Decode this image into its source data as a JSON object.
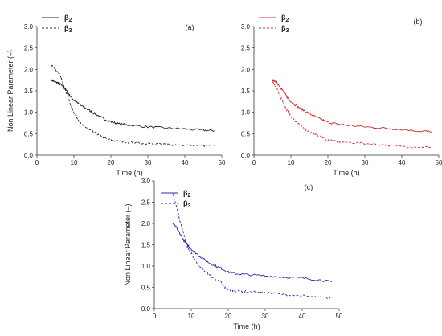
{
  "chart_data": [
    {
      "type": "line",
      "panel_label": "(a)",
      "xlabel": "Time (h)",
      "ylabel": "Non Linear Parameter (–)",
      "xlim": [
        0,
        50
      ],
      "ylim": [
        0,
        3.0
      ],
      "xticks": [
        0,
        10,
        20,
        30,
        40,
        50
      ],
      "yticks": [
        0.0,
        0.5,
        1.0,
        1.5,
        2.0,
        2.5,
        3.0
      ],
      "legend_position": "top-left",
      "color": "#222222",
      "series": [
        {
          "name": "β2",
          "style": "solid",
          "x": [
            4,
            5,
            6,
            7,
            8,
            9,
            10,
            12,
            14,
            16,
            18,
            20,
            22,
            25,
            30,
            35,
            40,
            45,
            48
          ],
          "y": [
            1.75,
            1.7,
            1.68,
            1.6,
            1.5,
            1.38,
            1.28,
            1.15,
            1.05,
            0.95,
            0.85,
            0.78,
            0.73,
            0.7,
            0.66,
            0.63,
            0.61,
            0.58,
            0.57
          ]
        },
        {
          "name": "β3",
          "style": "dashed",
          "x": [
            4,
            5,
            6,
            7,
            8,
            9,
            10,
            11,
            12,
            14,
            16,
            18,
            20,
            22,
            25,
            30,
            35,
            40,
            45,
            48
          ],
          "y": [
            2.1,
            2.0,
            1.9,
            1.7,
            1.45,
            1.2,
            1.0,
            0.85,
            0.72,
            0.6,
            0.5,
            0.4,
            0.35,
            0.32,
            0.3,
            0.27,
            0.25,
            0.23,
            0.22,
            0.22
          ]
        }
      ]
    },
    {
      "type": "line",
      "panel_label": "(b)",
      "xlabel": "Time (h)",
      "ylabel": "",
      "xlim": [
        0,
        50
      ],
      "ylim": [
        0,
        3.0
      ],
      "xticks": [
        0,
        10,
        20,
        30,
        40,
        50
      ],
      "yticks": [
        0.0,
        0.5,
        1.0,
        1.5,
        2.0,
        2.5,
        3.0
      ],
      "legend_position": "top-left",
      "color": "#cc2b2b",
      "series": [
        {
          "name": "β2",
          "style": "solid",
          "x": [
            5,
            6,
            7,
            8,
            9,
            10,
            12,
            14,
            16,
            18,
            20,
            22,
            25,
            30,
            35,
            40,
            45,
            48
          ],
          "y": [
            1.75,
            1.72,
            1.6,
            1.48,
            1.35,
            1.25,
            1.12,
            1.02,
            0.92,
            0.84,
            0.77,
            0.73,
            0.7,
            0.66,
            0.63,
            0.6,
            0.56,
            0.55
          ]
        },
        {
          "name": "β3",
          "style": "dashed",
          "x": [
            5,
            6,
            7,
            8,
            9,
            10,
            11,
            12,
            14,
            16,
            18,
            20,
            22,
            25,
            30,
            35,
            40,
            45,
            48
          ],
          "y": [
            1.7,
            1.6,
            1.4,
            1.2,
            1.05,
            0.92,
            0.82,
            0.72,
            0.6,
            0.5,
            0.42,
            0.36,
            0.32,
            0.3,
            0.27,
            0.24,
            0.2,
            0.19,
            0.19
          ]
        }
      ]
    },
    {
      "type": "line",
      "panel_label": "(c)",
      "xlabel": "Time (h)",
      "ylabel": "Non Linear Parameter (–)",
      "xlim": [
        0,
        50
      ],
      "ylim": [
        0,
        3.0
      ],
      "xticks": [
        0,
        10,
        20,
        30,
        40,
        50
      ],
      "yticks": [
        0.0,
        0.5,
        1.0,
        1.5,
        2.0,
        2.5,
        3.0
      ],
      "legend_position": "top-left",
      "color": "#2a2ab8",
      "series": [
        {
          "name": "β2",
          "style": "solid",
          "x": [
            5,
            6,
            7,
            8,
            9,
            10,
            12,
            14,
            16,
            18,
            20,
            22,
            25,
            30,
            35,
            40,
            45,
            48
          ],
          "y": [
            2.0,
            1.9,
            1.75,
            1.6,
            1.5,
            1.4,
            1.25,
            1.12,
            1.02,
            0.95,
            0.86,
            0.82,
            0.8,
            0.77,
            0.74,
            0.72,
            0.67,
            0.63
          ]
        },
        {
          "name": "β3",
          "style": "dashed",
          "x": [
            5,
            6,
            7,
            8,
            9,
            10,
            11,
            12,
            14,
            16,
            18,
            19,
            20,
            22,
            25,
            30,
            35,
            40,
            45,
            48
          ],
          "y": [
            2.7,
            2.4,
            2.05,
            1.75,
            1.45,
            1.3,
            1.15,
            1.0,
            0.85,
            0.72,
            0.62,
            0.5,
            0.45,
            0.42,
            0.4,
            0.38,
            0.33,
            0.3,
            0.26,
            0.25
          ]
        }
      ]
    }
  ]
}
